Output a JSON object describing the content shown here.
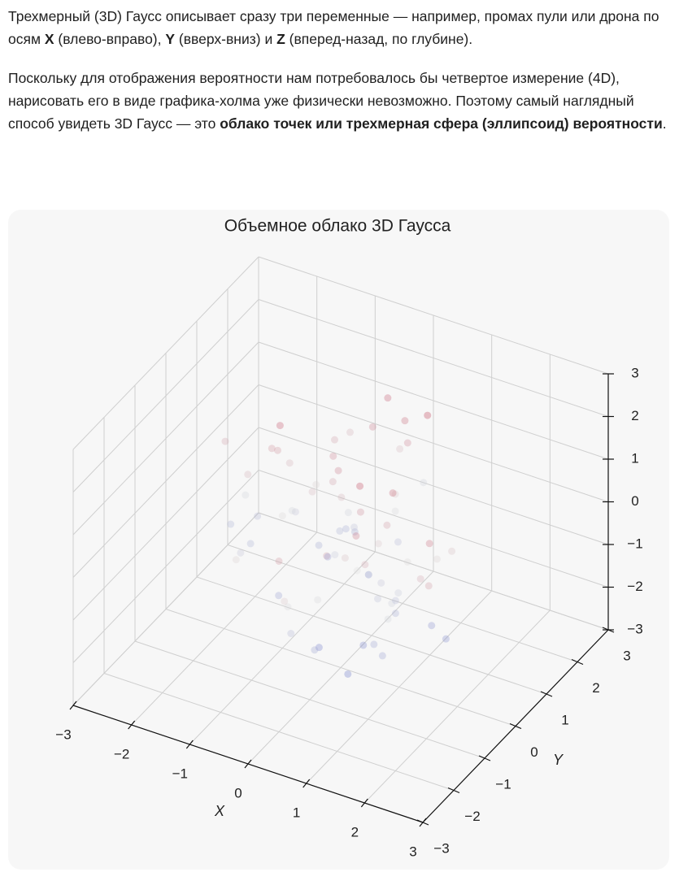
{
  "text": {
    "paragraphs": [
      [
        {
          "text": "Трехмерный (3D) Гаусс описывает сразу три переменные — например, промах пули или дрона по осям ",
          "bold": false
        },
        {
          "text": "X",
          "bold": true
        },
        {
          "text": " (влево-вправо), ",
          "bold": false
        },
        {
          "text": "Y",
          "bold": true
        },
        {
          "text": " (вверх-вниз) и ",
          "bold": false
        },
        {
          "text": "Z",
          "bold": true
        },
        {
          "text": " (вперед-назад, по глубине).",
          "bold": false
        }
      ],
      [
        {
          "text": "Поскольку для отображения вероятности нам потребовалось бы четвертое измерение (4D), нарисовать его в виде графика-холма уже физически невозможно. Поэтому самый наглядный способ увидеть 3D Гаусс — это ",
          "bold": false
        },
        {
          "text": "облако точек или трехмерная сфера (эллипсоид) вероятности",
          "bold": true
        },
        {
          "text": ".",
          "bold": false
        }
      ]
    ]
  },
  "chart_data": {
    "type": "scatter3d",
    "title": "Объемное облако 3D Гаусса",
    "x_label": "X",
    "y_label": "Y",
    "xlim": [
      -3,
      3
    ],
    "ylim": [
      -3,
      3
    ],
    "zlim": [
      -3,
      3
    ],
    "xticks": [
      {
        "value": -3,
        "label": "−3"
      },
      {
        "value": -2,
        "label": "−2"
      },
      {
        "value": -1,
        "label": "−1"
      },
      0,
      1,
      2,
      3
    ],
    "yticks": [
      {
        "value": -3,
        "label": "−3"
      },
      {
        "value": -2,
        "label": "−2"
      },
      {
        "value": -1,
        "label": "−1"
      },
      0,
      1,
      2,
      3
    ],
    "zticks": [
      {
        "value": -3,
        "label": "−3"
      },
      {
        "value": -2,
        "label": "−2"
      },
      {
        "value": -1,
        "label": "−1"
      },
      0,
      1,
      2,
      3
    ],
    "grid": true,
    "colormap": [
      "#3b4cc0",
      "#dddddd",
      "#b40426"
    ],
    "x": [
      0.5,
      -1.2,
      0.3,
      1.1,
      -0.4,
      0.8,
      -1.6,
      0.2,
      1.5,
      -0.7,
      0.0,
      0.9,
      -1.0,
      0.4,
      -0.2,
      1.3,
      -0.9,
      0.6,
      -1.4,
      0.1,
      1.8,
      -0.5,
      0.7,
      -0.1,
      1.0,
      -1.8,
      0.3,
      -0.8,
      1.2,
      -0.3,
      0.5,
      -1.1,
      2.0,
      -0.6,
      0.2,
      1.4,
      -1.3,
      0.8,
      -0.2,
      0.6,
      -2.1,
      0.9,
      -0.4,
      1.6,
      0.0,
      -0.9,
      1.1,
      -1.5,
      0.4,
      -0.1,
      0.7,
      -0.7,
      1.9,
      -1.2,
      0.3,
      0.1,
      -0.5,
      1.2,
      -1.7,
      0.6,
      -0.3,
      0.9,
      -1.0,
      2.2,
      -0.8,
      0.2,
      1.0,
      -0.6,
      0.5,
      -1.9,
      1.3,
      -0.2,
      0.8,
      -1.4,
      0.0,
      1.7,
      -0.9,
      0.4,
      -2.3,
      1.1
    ],
    "y": [
      -0.3,
      0.8,
      1.2,
      -1.0,
      0.5,
      -0.6,
      0.1,
      1.7,
      -1.3,
      0.4,
      0.9,
      -0.2,
      -1.5,
      1.1,
      0.3,
      -0.8,
      2.0,
      -0.4,
      0.6,
      -1.9,
      0.2,
      1.4,
      -0.7,
      0.0,
      -1.1,
      0.7,
      1.6,
      -0.5,
      -0.1,
      1.0,
      -1.4,
      0.5,
      -0.9,
      1.3,
      -2.2,
      0.3,
      0.8,
      -0.2,
      1.9,
      -0.6,
      0.4,
      -1.2,
      1.0,
      0.1,
      -0.7,
      1.5,
      -0.3,
      0.6,
      -1.6,
      2.1,
      -0.1,
      0.9,
      -1.0,
      0.3,
      1.2,
      -1.8,
      0.7,
      -0.4,
      0.2,
      -0.9,
      1.6,
      -0.5,
      0.0,
      -1.3,
      0.8,
      2.3,
      -0.2,
      1.1,
      -0.8,
      0.5,
      -1.1,
      0.4,
      1.3,
      -0.6,
      -2.0,
      0.2,
      0.9,
      -1.5,
      0.6,
      -0.3
    ],
    "z": [
      1.1,
      -0.5,
      0.3,
      -1.2,
      0.8,
      0.0,
      -0.9,
      1.6,
      -0.2,
      0.5,
      -1.5,
      0.9,
      0.2,
      -0.7,
      1.3,
      -0.3,
      0.6,
      -1.9,
      1.0,
      -0.1,
      0.4,
      -1.1,
      2.1,
      -0.4,
      0.7,
      -0.8,
      1.2,
      -1.3,
      0.1,
      -0.6,
      0.9,
      -0.2,
      1.5,
      -1.0,
      0.3,
      -1.6,
      0.6,
      -0.5,
      1.8,
      0.0,
      -0.9,
      1.4,
      -0.3,
      0.2,
      -2.0,
      0.8,
      -0.7,
      1.0,
      -1.2,
      0.5,
      0.3,
      -1.4,
      0.7,
      1.9,
      -0.1,
      -0.8,
      1.2,
      -0.4,
      0.6,
      -2.2,
      1.3,
      -0.6,
      0.1,
      0.9,
      -1.1,
      -0.3,
      1.7,
      -0.9,
      0.4,
      -0.2,
      -1.3,
      0.6,
      2.3,
      -0.5,
      1.0,
      -1.7,
      0.2,
      -0.1,
      0.8,
      -1.0
    ]
  }
}
